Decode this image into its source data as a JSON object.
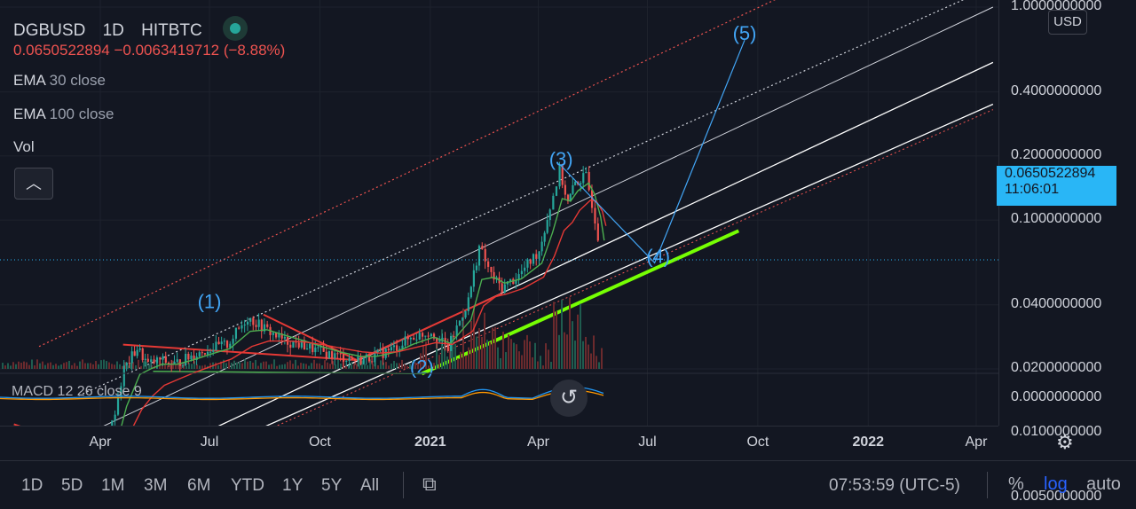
{
  "legend": {
    "symbol": "DGBUSD",
    "interval": "1D",
    "exchange": "HITBTC",
    "last_price": "0.0650522894",
    "change": "−0.0063419712 (−8.88%)",
    "ema30_name": "EMA",
    "ema30_params": "30 close",
    "ema100_name": "EMA",
    "ema100_params": "100 close",
    "vol_label": "Vol",
    "macd_label": "MACD 12 26 close 9"
  },
  "price_axis": {
    "currency": "USD",
    "ticks": [
      "1.0000000000",
      "0.4000000000",
      "0.2000000000",
      "0.1000000000",
      "0.0400000000",
      "0.0200000000",
      "0.0100000000",
      "0.0050000000"
    ],
    "macd_tick": "0.0000000000",
    "last_price": "0.0650522894",
    "countdown": "11:06:01"
  },
  "time_axis": {
    "ticks": [
      {
        "label": "Apr",
        "bold": false
      },
      {
        "label": "Jul",
        "bold": false
      },
      {
        "label": "Oct",
        "bold": false
      },
      {
        "label": "2021",
        "bold": true
      },
      {
        "label": "Apr",
        "bold": false
      },
      {
        "label": "Jul",
        "bold": false
      },
      {
        "label": "Oct",
        "bold": false
      },
      {
        "label": "2022",
        "bold": true
      },
      {
        "label": "Apr",
        "bold": false
      }
    ]
  },
  "bottom_bar": {
    "ranges": [
      "1D",
      "5D",
      "1M",
      "3M",
      "6M",
      "YTD",
      "1Y",
      "5Y",
      "All"
    ],
    "clock": "07:53:59 (UTC-5)",
    "percent": "%",
    "log": "log",
    "auto": "auto"
  },
  "colors": {
    "background": "#131722",
    "up": "#26a69a",
    "down": "#ef5350",
    "wave_label": "#42a5f5",
    "support_line": "#76ff03",
    "last_price_box": "#29b6f6"
  },
  "icons": {
    "collapse": "chevron-up-icon",
    "reset": "reset-icon",
    "settings": "gear-icon",
    "compare": "compare-icon"
  },
  "chart_data": {
    "type": "line",
    "title": "DGBUSD 1D HITBTC",
    "scale": "log",
    "ylim": [
      0.0037,
      1.1
    ],
    "y_ticks": [
      1.0,
      0.4,
      0.2,
      0.1,
      0.04,
      0.02,
      0.01,
      0.005
    ],
    "x_ticks": [
      "Apr",
      "Jul",
      "Oct",
      "2021",
      "Apr",
      "Jul",
      "Oct",
      "2022",
      "Apr"
    ],
    "last_price": 0.0650522894,
    "series": [
      {
        "name": "DGBUSD",
        "x": [
          "2020-02-01",
          "2020-02-20",
          "2020-03-05",
          "2020-03-13",
          "2020-03-20",
          "2020-04-01",
          "2020-04-10",
          "2020-04-20",
          "2020-05-01",
          "2020-05-10",
          "2020-05-20",
          "2020-06-01",
          "2020-06-15",
          "2020-07-01",
          "2020-07-15",
          "2020-08-01",
          "2020-08-15",
          "2020-09-01",
          "2020-09-15",
          "2020-10-01",
          "2020-10-15",
          "2020-11-01",
          "2020-11-15",
          "2020-12-01",
          "2020-12-15",
          "2021-01-01",
          "2021-01-15",
          "2021-02-01",
          "2021-02-10",
          "2021-02-20",
          "2021-03-01",
          "2021-03-15",
          "2021-04-01",
          "2021-04-10",
          "2021-04-18",
          "2021-04-25",
          "2021-05-01",
          "2021-05-10",
          "2021-05-15",
          "2021-05-20",
          "2021-05-23"
        ],
        "values": [
          0.0075,
          0.0078,
          0.0068,
          0.0042,
          0.0048,
          0.0062,
          0.011,
          0.02,
          0.025,
          0.021,
          0.022,
          0.021,
          0.023,
          0.025,
          0.026,
          0.035,
          0.031,
          0.027,
          0.026,
          0.024,
          0.023,
          0.022,
          0.023,
          0.025,
          0.028,
          0.03,
          0.025,
          0.042,
          0.075,
          0.055,
          0.048,
          0.055,
          0.072,
          0.115,
          0.17,
          0.12,
          0.15,
          0.16,
          0.12,
          0.085,
          0.065
        ]
      }
    ],
    "annotations": [
      {
        "label": "(1)",
        "x": "2020-07-01",
        "y": 0.0385
      },
      {
        "label": "(2)",
        "x": "2020-12-25",
        "y": 0.019
      },
      {
        "label": "(3)",
        "x": "2021-04-20",
        "y": 0.18
      },
      {
        "label": "(4)",
        "x": "2021-07-10",
        "y": 0.063
      },
      {
        "label": "(5)",
        "x": "2021-09-20",
        "y": 0.7
      }
    ],
    "wave_path": [
      {
        "x": "2021-04-20",
        "y": 0.18
      },
      {
        "x": "2021-07-07",
        "y": 0.063
      },
      {
        "x": "2021-09-20",
        "y": 0.7
      }
    ],
    "support_line": [
      {
        "x": "2020-12-25",
        "y": 0.019
      },
      {
        "x": "2021-09-15",
        "y": 0.089
      }
    ]
  }
}
